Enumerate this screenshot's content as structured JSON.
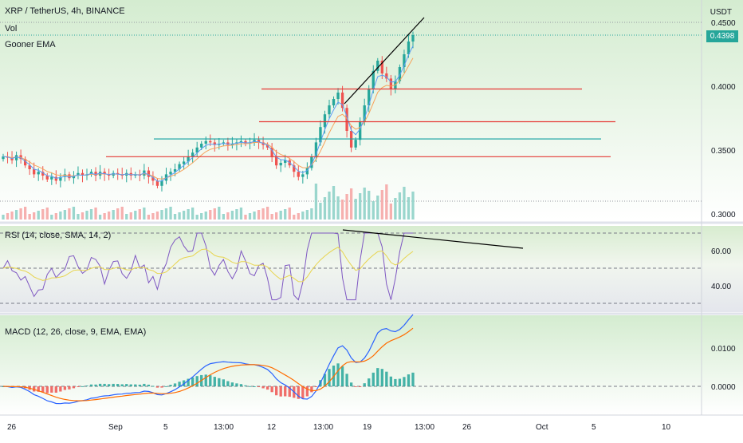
{
  "header": {
    "title": "XRP / TetherUS, 4h, BINANCE",
    "vol_label": "Vol",
    "ema_label": "Gooner EMA",
    "currency": "USDT",
    "last_price": "0.4398"
  },
  "rsi_panel": {
    "label": "RSI (14, close, SMA, 14, 2)",
    "ticks": [
      "60.00",
      "40.00"
    ]
  },
  "macd_panel": {
    "label": "MACD (12, 26, close, 9, EMA, EMA)",
    "ticks": [
      "0.0100",
      "0.0000"
    ]
  },
  "price_axis": {
    "ticks": [
      "0.4500",
      "0.4000",
      "0.3500",
      "0.3000"
    ]
  },
  "time_axis": {
    "ticks": [
      "26",
      "Sep",
      "5",
      "13:00",
      "12",
      "13:00",
      "19",
      "13:00",
      "26",
      "Oct",
      "5",
      "10"
    ]
  },
  "chart_data": {
    "type": "candlestick",
    "title": "XRP / TetherUS, 4h, BINANCE",
    "unit": "USDT",
    "price_range": [
      0.3,
      0.45
    ],
    "ohlc_close_series": [
      0.345,
      0.344,
      0.342,
      0.346,
      0.343,
      0.338,
      0.335,
      0.331,
      0.333,
      0.33,
      0.327,
      0.329,
      0.326,
      0.329,
      0.331,
      0.328,
      0.33,
      0.332,
      0.33,
      0.331,
      0.333,
      0.33,
      0.333,
      0.331,
      0.33,
      0.332,
      0.331,
      0.33,
      0.332,
      0.33,
      0.331,
      0.33,
      0.334,
      0.329,
      0.326,
      0.322,
      0.326,
      0.331,
      0.333,
      0.335,
      0.339,
      0.341,
      0.345,
      0.348,
      0.352,
      0.355,
      0.357,
      0.356,
      0.354,
      0.355,
      0.356,
      0.354,
      0.355,
      0.356,
      0.357,
      0.355,
      0.356,
      0.358,
      0.356,
      0.354,
      0.352,
      0.345,
      0.338,
      0.34,
      0.342,
      0.338,
      0.333,
      0.329,
      0.331,
      0.336,
      0.345,
      0.356,
      0.368,
      0.378,
      0.385,
      0.39,
      0.395,
      0.383,
      0.365,
      0.352,
      0.358,
      0.372,
      0.385,
      0.398,
      0.412,
      0.42,
      0.41,
      0.406,
      0.398,
      0.404,
      0.415,
      0.425,
      0.435,
      0.44
    ],
    "resistance_lines": [
      0.3978,
      0.3722
    ],
    "support_lines": [
      0.3448
    ],
    "teal_line": 0.3587,
    "rsi": {
      "levels": [
        70,
        50,
        30
      ],
      "ticks": [
        60,
        40
      ]
    },
    "macd": {
      "ticks": [
        0.01,
        0.0
      ]
    }
  }
}
